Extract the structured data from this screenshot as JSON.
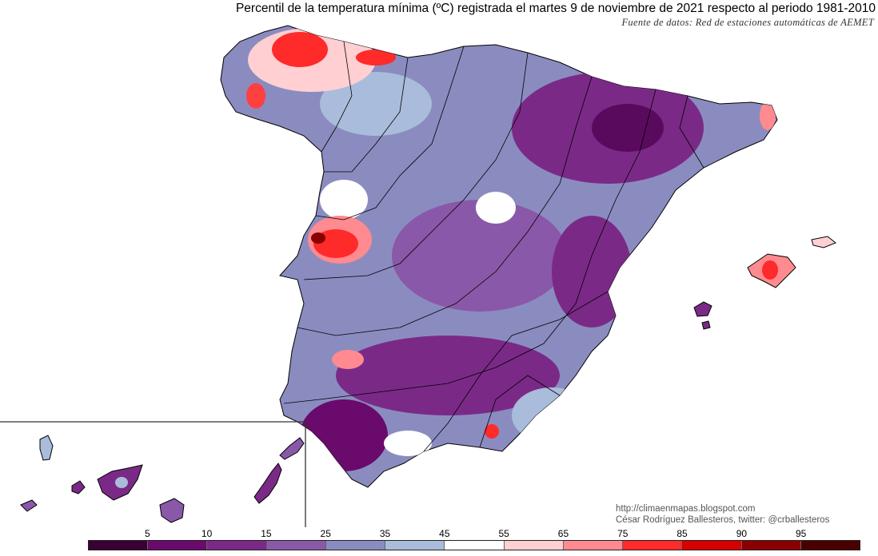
{
  "header": {
    "title": "Percentil de la temperatura mínima (ºC) registrada el martes 9 de noviembre de 2021 respecto al periodo 1981-2010",
    "source": "Fuente de datos: Red de estaciones automáticas de AEMET"
  },
  "credits": {
    "blog": "http://climaenmapas.blogspot.com",
    "author": "César Rodríguez Ballesteros, twitter: @crballesteros"
  },
  "legend": {
    "labels": [
      "5",
      "10",
      "15",
      "25",
      "35",
      "45",
      "55",
      "65",
      "75",
      "85",
      "90",
      "95"
    ],
    "colors": [
      "#3a0033",
      "#6a0a6c",
      "#7a2a86",
      "#8a58a8",
      "#8a8cc0",
      "#a9bcdb",
      "#ffffff",
      "#ffcfd2",
      "#ff8a8f",
      "#ff2a2a",
      "#d60000",
      "#8a0000",
      "#4a0000"
    ]
  }
}
